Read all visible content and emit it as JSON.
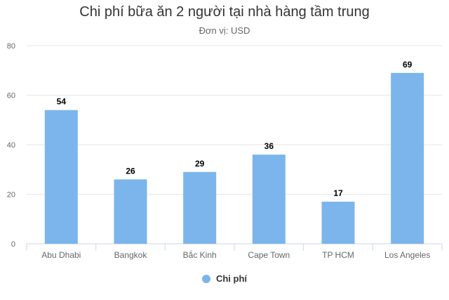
{
  "chart_data": {
    "type": "bar",
    "title": "Chi phí bữa ăn 2 người tại nhà hàng tầm trung",
    "subtitle": "Đơn vị: USD",
    "categories": [
      "Abu Dhabi",
      "Bangkok",
      "Bắc Kinh",
      "Cape Town",
      "TP HCM",
      "Los Angeles"
    ],
    "series": [
      {
        "name": "Chi phí",
        "values": [
          54,
          26,
          29,
          36,
          17,
          69
        ]
      }
    ],
    "ylim": [
      0,
      80
    ],
    "yticks": [
      0,
      20,
      40,
      60,
      80
    ],
    "grid": true,
    "data_labels": true,
    "legend_position": "bottom",
    "colors": {
      "bar": "#7cb5ec",
      "grid": "#e6e6e6",
      "axis": "#ccd6eb",
      "text": "#666666",
      "label": "#000000"
    }
  }
}
